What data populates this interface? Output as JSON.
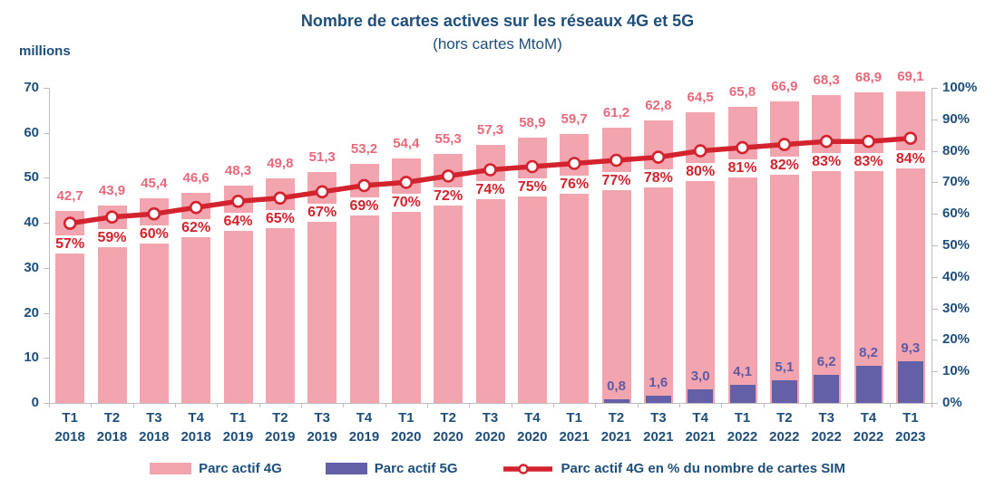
{
  "title": "Nombre de cartes actives sur les réseaux 4G et 5G",
  "subtitle": "(hors cartes MtoM)",
  "colors": {
    "text_blue": "#1f4e79",
    "axis_gray": "#bdbdbd",
    "bar_4g": "#f2a5ae",
    "bar_4g_label": "#e8697c",
    "bar_5g": "#6460a7",
    "bar_5g_label": "#5e5aa5",
    "line_red": "#d2232e"
  },
  "chart_data": {
    "type": "bar+line",
    "categories": [
      [
        "T1",
        "2018"
      ],
      [
        "T2",
        "2018"
      ],
      [
        "T3",
        "2018"
      ],
      [
        "T4",
        "2018"
      ],
      [
        "T1",
        "2019"
      ],
      [
        "T2",
        "2019"
      ],
      [
        "T3",
        "2019"
      ],
      [
        "T4",
        "2019"
      ],
      [
        "T1",
        "2020"
      ],
      [
        "T2",
        "2020"
      ],
      [
        "T3",
        "2020"
      ],
      [
        "T4",
        "2020"
      ],
      [
        "T1",
        "2021"
      ],
      [
        "T2",
        "2021"
      ],
      [
        "T3",
        "2021"
      ],
      [
        "T4",
        "2021"
      ],
      [
        "T1",
        "2022"
      ],
      [
        "T2",
        "2022"
      ],
      [
        "T3",
        "2022"
      ],
      [
        "T4",
        "2022"
      ],
      [
        "T1",
        "2023"
      ]
    ],
    "series": [
      {
        "name": "Parc actif 4G",
        "type": "bar",
        "axis": "left",
        "color": "#f2a5ae",
        "label_color": "#e8697c",
        "values": [
          42.7,
          43.9,
          45.4,
          46.6,
          48.3,
          49.8,
          51.3,
          53.2,
          54.4,
          55.3,
          57.3,
          58.9,
          59.7,
          61.2,
          62.8,
          64.5,
          65.8,
          66.9,
          68.3,
          68.9,
          69.1
        ],
        "labels": [
          "42,7",
          "43,9",
          "45,4",
          "46,6",
          "48,3",
          "49,8",
          "51,3",
          "53,2",
          "54,4",
          "55,3",
          "57,3",
          "58,9",
          "59,7",
          "61,2",
          "62,8",
          "64,5",
          "65,8",
          "66,9",
          "68,3",
          "68,9",
          "69,1"
        ]
      },
      {
        "name": "Parc actif 5G",
        "type": "bar",
        "axis": "left",
        "color": "#6460a7",
        "label_color": "#5e5aa5",
        "values": [
          null,
          null,
          null,
          null,
          null,
          null,
          null,
          null,
          null,
          null,
          null,
          null,
          null,
          0.8,
          1.6,
          3.0,
          4.1,
          5.1,
          6.2,
          8.2,
          9.3
        ],
        "labels": [
          null,
          null,
          null,
          null,
          null,
          null,
          null,
          null,
          null,
          null,
          null,
          null,
          null,
          "0,8",
          "1,6",
          "3,0",
          "4,1",
          "5,1",
          "6,2",
          "8,2",
          "9,3"
        ]
      },
      {
        "name": "Parc actif 4G en % du nombre de cartes SIM",
        "type": "line",
        "axis": "right",
        "color": "#d2232e",
        "marker": "circle-white-fill",
        "values": [
          57,
          59,
          60,
          62,
          64,
          65,
          67,
          69,
          70,
          72,
          74,
          75,
          76,
          77,
          78,
          80,
          81,
          82,
          83,
          83,
          84
        ],
        "labels": [
          "57%",
          "59%",
          "60%",
          "62%",
          "64%",
          "65%",
          "67%",
          "69%",
          "70%",
          "72%",
          "74%",
          "75%",
          "76%",
          "77%",
          "78%",
          "80%",
          "81%",
          "82%",
          "83%",
          "83%",
          "84%"
        ]
      }
    ],
    "left_axis": {
      "label": "millions",
      "ticks": [
        "0",
        "10",
        "20",
        "30",
        "40",
        "50",
        "60",
        "70"
      ],
      "min": 0,
      "max": 70
    },
    "right_axis": {
      "ticks": [
        "0%",
        "10%",
        "20%",
        "30%",
        "40%",
        "50%",
        "60%",
        "70%",
        "80%",
        "90%",
        "100%"
      ],
      "min": 0,
      "max": 100
    },
    "grid": "off",
    "legend_position": "bottom"
  }
}
